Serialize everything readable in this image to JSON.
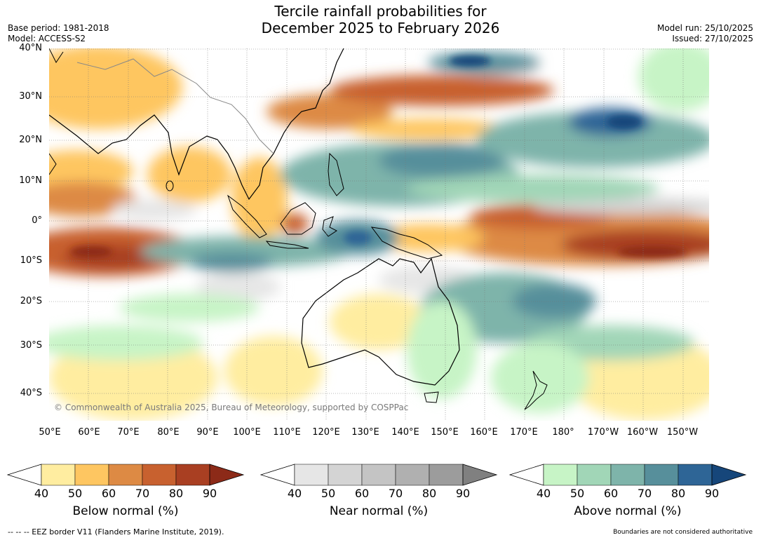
{
  "title": {
    "line1": "Tercile rainfall probabilities for",
    "line2": "December 2025 to February 2026"
  },
  "meta_left": {
    "base_period": "Base period: 1981-2018",
    "model": "Model: ACCESS-S2"
  },
  "meta_right": {
    "model_run": "Model run: 25/10/2025",
    "issued": "Issued: 27/10/2025"
  },
  "map": {
    "lat_labels": [
      "40°N",
      "30°N",
      "20°N",
      "10°N",
      "0°",
      "10°S",
      "20°S",
      "30°S",
      "40°S"
    ],
    "lon_labels": [
      "50°E",
      "60°E",
      "70°E",
      "80°E",
      "90°E",
      "100°E",
      "110°E",
      "120°E",
      "130°E",
      "140°E",
      "150°E",
      "160°E",
      "170°E",
      "180°",
      "170°W",
      "160°W",
      "150°W"
    ],
    "copyright": "© Commonwealth of Australia 2025, Bureau of Meteorology, supported by COSPPac",
    "colors": {
      "below": [
        "#ffeda0",
        "#fec661",
        "#dd8a44",
        "#c8612f",
        "#a93f22",
        "#8c2a18"
      ],
      "near": [
        "#e6e6e6",
        "#d4d4d4",
        "#c4c4c4",
        "#b0b0b0",
        "#9c9c9c",
        "#808080"
      ],
      "above": [
        "#c7f4c6",
        "#a1d6b7",
        "#7eb4aa",
        "#578f9b",
        "#2e6596",
        "#16467a"
      ]
    }
  },
  "colorbars": [
    {
      "label": "Below normal (%)",
      "ticks": [
        "40",
        "50",
        "60",
        "70",
        "80",
        "90"
      ],
      "colors": [
        "#ffeda0",
        "#fec661",
        "#dd8a44",
        "#c8612f",
        "#a93f22"
      ],
      "tip": "#8c2a18"
    },
    {
      "label": "Near normal (%)",
      "ticks": [
        "40",
        "50",
        "60",
        "70",
        "80",
        "90"
      ],
      "colors": [
        "#e6e6e6",
        "#d4d4d4",
        "#c4c4c4",
        "#b0b0b0",
        "#9c9c9c"
      ],
      "tip": "#808080"
    },
    {
      "label": "Above normal (%)",
      "ticks": [
        "40",
        "50",
        "60",
        "70",
        "80",
        "90"
      ],
      "colors": [
        "#c7f4c6",
        "#a1d6b7",
        "#7eb4aa",
        "#578f9b",
        "#2e6596"
      ],
      "tip": "#16467a"
    }
  ],
  "footer": {
    "left": "--  --  -- EEZ border V11 (Flanders Marine Institute, 2019).",
    "right": "Boundaries are not considered authoritative"
  }
}
